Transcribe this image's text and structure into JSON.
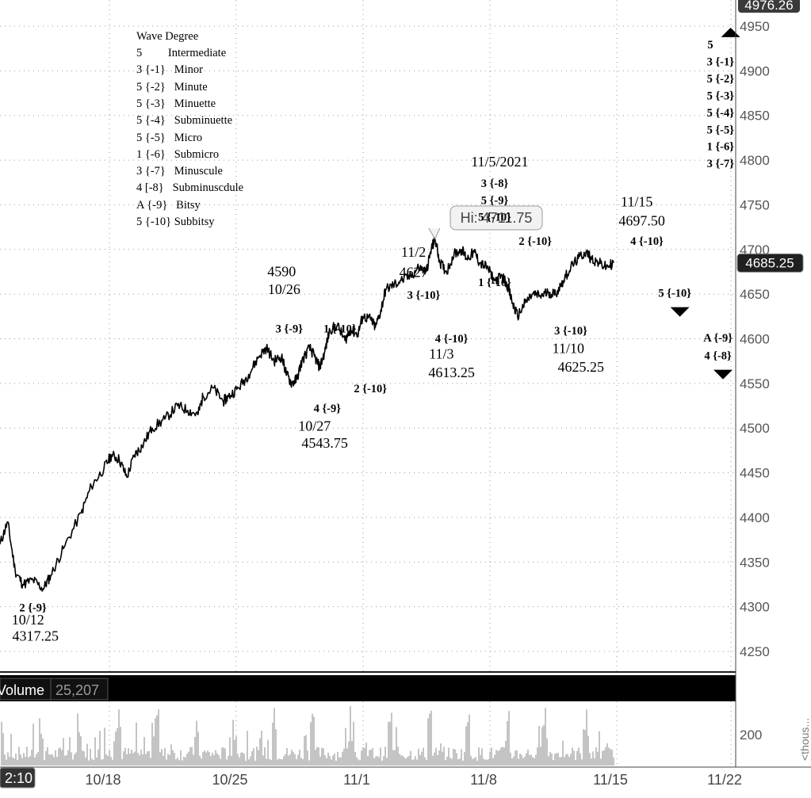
{
  "chart_data": {
    "type": "line",
    "instrument_price_last": "4685.25",
    "axis_top_label": "4976.26",
    "ylim": [
      4225,
      4960
    ],
    "yticks": [
      4250,
      4300,
      4350,
      4400,
      4450,
      4500,
      4550,
      4600,
      4650,
      4700,
      4750,
      4800,
      4850,
      4900,
      4950
    ],
    "x_tick_labels": [
      "10/18",
      "10/25",
      "11/1",
      "11/8",
      "11/15",
      "11/22"
    ],
    "x_cursor_label": "2:10",
    "price_path": [
      [
        0,
        4370
      ],
      [
        0.3,
        4395
      ],
      [
        0.6,
        4340
      ],
      [
        0.9,
        4325
      ],
      [
        1.3,
        4330
      ],
      [
        1.7,
        4320
      ],
      [
        2.0,
        4335
      ],
      [
        2.5,
        4365
      ],
      [
        3.2,
        4405
      ],
      [
        3.6,
        4435
      ],
      [
        4.1,
        4455
      ],
      [
        4.4,
        4470
      ],
      [
        4.7,
        4465
      ],
      [
        5.0,
        4445
      ],
      [
        5.3,
        4470
      ],
      [
        5.6,
        4480
      ],
      [
        6.0,
        4500
      ],
      [
        6.5,
        4510
      ],
      [
        7.0,
        4525
      ],
      [
        7.4,
        4520
      ],
      [
        7.8,
        4515
      ],
      [
        8.0,
        4535
      ],
      [
        8.4,
        4545
      ],
      [
        8.8,
        4530
      ],
      [
        9.0,
        4535
      ],
      [
        9.4,
        4545
      ],
      [
        9.8,
        4560
      ],
      [
        10.2,
        4580
      ],
      [
        10.5,
        4590
      ],
      [
        10.8,
        4575
      ],
      [
        11.1,
        4580
      ],
      [
        11.3,
        4560
      ],
      [
        11.5,
        4550
      ],
      [
        11.7,
        4555
      ],
      [
        11.9,
        4575
      ],
      [
        12.2,
        4590
      ],
      [
        12.4,
        4580
      ],
      [
        12.6,
        4568
      ],
      [
        12.8,
        4585
      ],
      [
        13.0,
        4610
      ],
      [
        13.3,
        4615
      ],
      [
        13.6,
        4598
      ],
      [
        13.8,
        4610
      ],
      [
        14.1,
        4605
      ],
      [
        14.3,
        4625
      ],
      [
        14.6,
        4622
      ],
      [
        14.8,
        4613
      ],
      [
        15.0,
        4630
      ],
      [
        15.2,
        4655
      ],
      [
        15.5,
        4660
      ],
      [
        15.8,
        4665
      ],
      [
        16.2,
        4670
      ],
      [
        16.5,
        4680
      ],
      [
        16.8,
        4675
      ],
      [
        17.0,
        4700
      ],
      [
        17.15,
        4711.75
      ],
      [
        17.35,
        4685
      ],
      [
        17.6,
        4675
      ],
      [
        17.9,
        4695
      ],
      [
        18.2,
        4700
      ],
      [
        18.4,
        4690
      ],
      [
        18.7,
        4697
      ],
      [
        18.9,
        4685
      ],
      [
        19.2,
        4680
      ],
      [
        19.5,
        4665
      ],
      [
        19.8,
        4670
      ],
      [
        20.0,
        4660
      ],
      [
        20.2,
        4640
      ],
      [
        20.4,
        4625.25
      ],
      [
        20.7,
        4640
      ],
      [
        21.0,
        4650
      ],
      [
        21.3,
        4648
      ],
      [
        21.6,
        4652
      ],
      [
        21.9,
        4650
      ],
      [
        22.2,
        4665
      ],
      [
        22.5,
        4680
      ],
      [
        22.8,
        4690
      ],
      [
        23.1,
        4697.5
      ],
      [
        23.3,
        4690
      ],
      [
        23.6,
        4685
      ],
      [
        23.9,
        4680
      ],
      [
        24.2,
        4685.25
      ]
    ],
    "x_domain": [
      0,
      29
    ],
    "tick_positions": [
      4.5,
      9.5,
      14.5,
      19.5,
      24.5,
      29.0
    ],
    "volume_label": "Volume",
    "volume_value": "25,207",
    "volume_yticks": [
      "200"
    ],
    "volume_axis_unit": "<thous...",
    "price_tag": "Hi: 4711.75",
    "annotations": [
      {
        "lines": [
          "2 {-9}"
        ],
        "bold": true,
        "x": 1.3,
        "y": 4295
      },
      {
        "lines": [
          "10/12"
        ],
        "bold": false,
        "x": 1.1,
        "y": 4280
      },
      {
        "lines": [
          "4317.25"
        ],
        "bold": false,
        "x": 1.4,
        "y": 4262
      },
      {
        "lines": [
          "4590"
        ],
        "bold": false,
        "x": 11.1,
        "y": 4670
      },
      {
        "lines": [
          "10/26"
        ],
        "bold": false,
        "x": 11.2,
        "y": 4650
      },
      {
        "lines": [
          "3 {-9}"
        ],
        "bold": true,
        "x": 11.4,
        "y": 4607
      },
      {
        "lines": [
          "1 {-10}"
        ],
        "bold": true,
        "x": 13.4,
        "y": 4607
      },
      {
        "lines": [
          "2 {-10}"
        ],
        "bold": true,
        "x": 14.6,
        "y": 4540
      },
      {
        "lines": [
          "4 {-9}"
        ],
        "bold": true,
        "x": 12.9,
        "y": 4518
      },
      {
        "lines": [
          "10/27"
        ],
        "bold": false,
        "x": 12.4,
        "y": 4497
      },
      {
        "lines": [
          "4543.75"
        ],
        "bold": false,
        "x": 12.8,
        "y": 4478
      },
      {
        "lines": [
          "11/2"
        ],
        "bold": false,
        "x": 16.3,
        "y": 4692
      },
      {
        "lines": [
          "4627"
        ],
        "bold": false,
        "x": 16.3,
        "y": 4669
      },
      {
        "lines": [
          "3 {-10}"
        ],
        "bold": true,
        "x": 16.7,
        "y": 4645
      },
      {
        "lines": [
          "4 {-10}"
        ],
        "bold": true,
        "x": 17.8,
        "y": 4596
      },
      {
        "lines": [
          "11/3"
        ],
        "bold": false,
        "x": 17.4,
        "y": 4578
      },
      {
        "lines": [
          "4613.25"
        ],
        "bold": false,
        "x": 17.8,
        "y": 4557
      },
      {
        "lines": [
          "11/5/2021"
        ],
        "bold": false,
        "x": 19.7,
        "y": 4793
      },
      {
        "lines": [
          "3 {-8}"
        ],
        "bold": true,
        "x": 19.5,
        "y": 4770
      },
      {
        "lines": [
          "5 {-9}"
        ],
        "bold": true,
        "x": 19.5,
        "y": 4751
      },
      {
        "lines": [
          "5 {-10}"
        ],
        "bold": true,
        "x": 19.5,
        "y": 4732
      },
      {
        "lines": [
          "2 {-10}"
        ],
        "bold": true,
        "x": 21.1,
        "y": 4705
      },
      {
        "lines": [
          "1 {-10}"
        ],
        "bold": true,
        "x": 19.5,
        "y": 4659
      },
      {
        "lines": [
          "3 {-10}"
        ],
        "bold": true,
        "x": 22.5,
        "y": 4605
      },
      {
        "lines": [
          "11/10"
        ],
        "bold": false,
        "x": 22.4,
        "y": 4584
      },
      {
        "lines": [
          "4625.25"
        ],
        "bold": false,
        "x": 22.9,
        "y": 4563
      },
      {
        "lines": [
          "11/15"
        ],
        "bold": false,
        "x": 25.1,
        "y": 4748
      },
      {
        "lines": [
          "4697.50"
        ],
        "bold": false,
        "x": 25.3,
        "y": 4727
      },
      {
        "lines": [
          "4 {-10}"
        ],
        "bold": true,
        "x": 25.5,
        "y": 4705
      },
      {
        "lines": [
          "5 {-10}"
        ],
        "bold": true,
        "x": 26.6,
        "y": 4647
      },
      {
        "lines": [
          "A {-9}"
        ],
        "bold": true,
        "x": 28.3,
        "y": 4597
      },
      {
        "lines": [
          "4 {-8}"
        ],
        "bold": true,
        "x": 28.3,
        "y": 4577
      },
      {
        "lines": [
          "5"
        ],
        "bold": true,
        "x": 28.0,
        "y": 4925
      },
      {
        "lines": [
          "3 {-1}"
        ],
        "bold": true,
        "x": 28.4,
        "y": 4906
      },
      {
        "lines": [
          "5 {-2}"
        ],
        "bold": true,
        "x": 28.4,
        "y": 4887
      },
      {
        "lines": [
          "5 {-3}"
        ],
        "bold": true,
        "x": 28.4,
        "y": 4868
      },
      {
        "lines": [
          "5 {-4}"
        ],
        "bold": true,
        "x": 28.4,
        "y": 4849
      },
      {
        "lines": [
          "5 {-5}"
        ],
        "bold": true,
        "x": 28.4,
        "y": 4830
      },
      {
        "lines": [
          "1 {-6}"
        ],
        "bold": true,
        "x": 28.4,
        "y": 4811
      },
      {
        "lines": [
          "3 {-7}"
        ],
        "bold": true,
        "x": 28.4,
        "y": 4792
      }
    ],
    "markers": [
      {
        "shape": "up",
        "x": 28.8,
        "y": 4943
      },
      {
        "shape": "down",
        "x": 26.8,
        "y": 4630
      },
      {
        "shape": "down",
        "x": 28.5,
        "y": 4560
      }
    ],
    "legend": {
      "title": "Wave Degree",
      "rows": [
        "5         Intermediate",
        "3 {-1}   Minor",
        "5 {-2}   Minute",
        "5 {-3}   Minuette",
        "5 {-4}   Subminuette",
        "5 {-5}   Micro",
        "1 {-6}   Submicro",
        "3 {-7}   Minuscule",
        "4 [-8}   Subminuscdule",
        "A {-9}   Bitsy",
        "5 {-10} Subbitsy"
      ]
    },
    "colors": {
      "line": "#000000",
      "grid": "#9a9a9a",
      "axis_bg": "#ffffff",
      "volume_bar": "#b0b0b0",
      "volume_header_bg": "#000000",
      "tag_bg": "#f2f2f2",
      "price_badge_bg": "#202020"
    }
  }
}
